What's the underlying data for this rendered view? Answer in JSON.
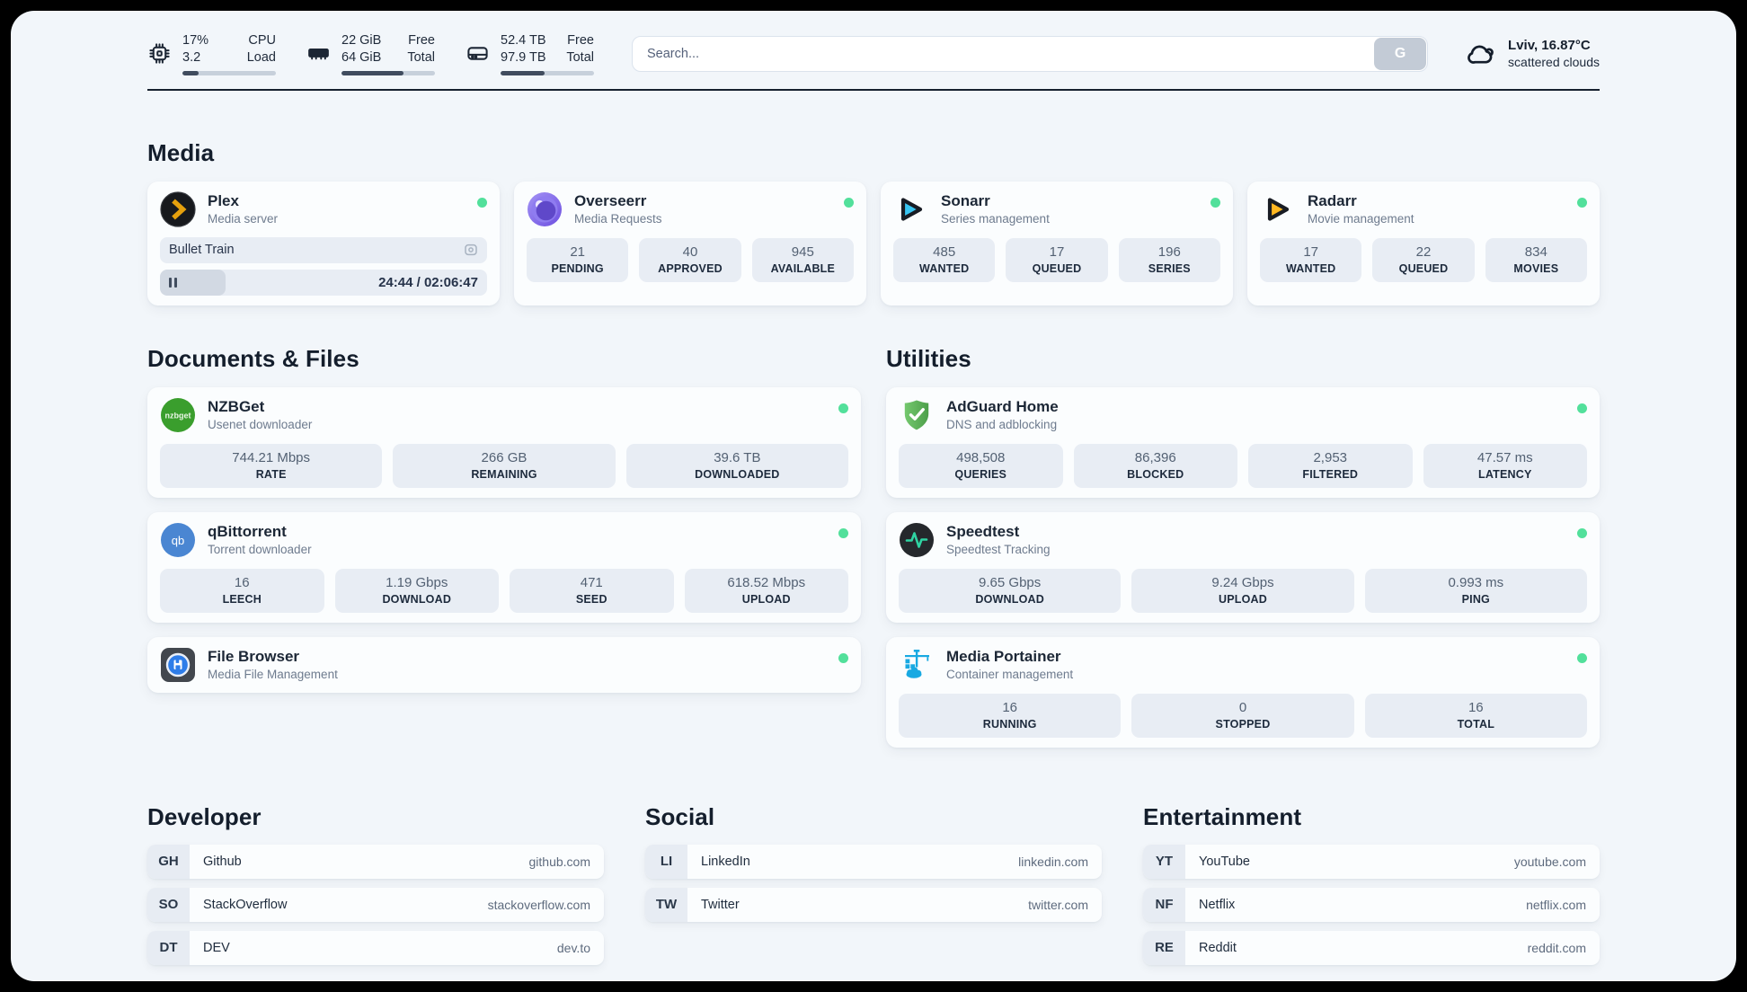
{
  "colors": {
    "status_online": "#52e09b",
    "plex": "#e5a00d",
    "sonarr": "#38c5f2",
    "radarr": "#ffb822",
    "nzbget": "#3a9e2d",
    "qbittorrent": "#4a86d2",
    "adguard": "#63b95e",
    "speedtest_pulse": "#2fd3a2",
    "portainer": "#18a9e2",
    "filebrowser_blue": "#2e7de9"
  },
  "header": {
    "stats": [
      {
        "icon": "cpu-icon",
        "col1": [
          "17%",
          "3.2"
        ],
        "col2": [
          "CPU",
          "Load"
        ],
        "progress": 17
      },
      {
        "icon": "ram-icon",
        "col1": [
          "22 GiB",
          "64 GiB"
        ],
        "col2": [
          "Free",
          "Total"
        ],
        "progress": 66
      },
      {
        "icon": "disk-icon",
        "col1": [
          "52.4 TB",
          "97.9 TB"
        ],
        "col2": [
          "Free",
          "Total"
        ],
        "progress": 47
      }
    ],
    "search": {
      "placeholder": "Search...",
      "button": "G"
    },
    "weather": {
      "icon": "cloud-icon",
      "location": "Lviv, 16.87°C",
      "condition": "scattered clouds"
    }
  },
  "media": {
    "heading": "Media",
    "plex": {
      "name": "Plex",
      "desc": "Media server",
      "status": "online",
      "now_playing": "Bullet Train",
      "time": "24:44 / 02:06:47",
      "progress": 20
    },
    "cards": [
      {
        "name": "Overseerr",
        "desc": "Media Requests",
        "status": "online",
        "stats": [
          {
            "v": "21",
            "l": "PENDING"
          },
          {
            "v": "40",
            "l": "APPROVED"
          },
          {
            "v": "945",
            "l": "AVAILABLE"
          }
        ]
      },
      {
        "name": "Sonarr",
        "desc": "Series management",
        "status": "online",
        "stats": [
          {
            "v": "485",
            "l": "WANTED"
          },
          {
            "v": "17",
            "l": "QUEUED"
          },
          {
            "v": "196",
            "l": "SERIES"
          }
        ]
      },
      {
        "name": "Radarr",
        "desc": "Movie management",
        "status": "online",
        "stats": [
          {
            "v": "17",
            "l": "WANTED"
          },
          {
            "v": "22",
            "l": "QUEUED"
          },
          {
            "v": "834",
            "l": "MOVIES"
          }
        ]
      }
    ]
  },
  "documents": {
    "heading": "Documents & Files",
    "cards": [
      {
        "name": "NZBGet",
        "desc": "Usenet downloader",
        "status": "online",
        "stats": [
          {
            "v": "744.21 Mbps",
            "l": "RATE"
          },
          {
            "v": "266 GB",
            "l": "REMAINING"
          },
          {
            "v": "39.6 TB",
            "l": "DOWNLOADED"
          }
        ]
      },
      {
        "name": "qBittorrent",
        "desc": "Torrent downloader",
        "status": "online",
        "stats": [
          {
            "v": "16",
            "l": "LEECH"
          },
          {
            "v": "1.19 Gbps",
            "l": "DOWNLOAD"
          },
          {
            "v": "471",
            "l": "SEED"
          },
          {
            "v": "618.52 Mbps",
            "l": "UPLOAD"
          }
        ]
      },
      {
        "name": "File Browser",
        "desc": "Media File Management",
        "status": "online",
        "stats": []
      }
    ]
  },
  "utilities": {
    "heading": "Utilities",
    "cards": [
      {
        "name": "AdGuard Home",
        "desc": "DNS and adblocking",
        "status": "online",
        "stats": [
          {
            "v": "498,508",
            "l": "QUERIES"
          },
          {
            "v": "86,396",
            "l": "BLOCKED"
          },
          {
            "v": "2,953",
            "l": "FILTERED"
          },
          {
            "v": "47.57 ms",
            "l": "LATENCY"
          }
        ]
      },
      {
        "name": "Speedtest",
        "desc": "Speedtest Tracking",
        "status": "online",
        "stats": [
          {
            "v": "9.65 Gbps",
            "l": "DOWNLOAD"
          },
          {
            "v": "9.24 Gbps",
            "l": "UPLOAD"
          },
          {
            "v": "0.993 ms",
            "l": "PING"
          }
        ]
      },
      {
        "name": "Media Portainer",
        "desc": "Container management",
        "status": "online",
        "stats": [
          {
            "v": "16",
            "l": "RUNNING"
          },
          {
            "v": "0",
            "l": "STOPPED"
          },
          {
            "v": "16",
            "l": "TOTAL"
          }
        ]
      }
    ]
  },
  "bookmarks": [
    {
      "heading": "Developer",
      "links": [
        {
          "abbr": "GH",
          "name": "Github",
          "url": "github.com"
        },
        {
          "abbr": "SO",
          "name": "StackOverflow",
          "url": "stackoverflow.com"
        },
        {
          "abbr": "DT",
          "name": "DEV",
          "url": "dev.to"
        }
      ]
    },
    {
      "heading": "Social",
      "links": [
        {
          "abbr": "LI",
          "name": "LinkedIn",
          "url": "linkedin.com"
        },
        {
          "abbr": "TW",
          "name": "Twitter",
          "url": "twitter.com"
        }
      ]
    },
    {
      "heading": "Entertainment",
      "links": [
        {
          "abbr": "YT",
          "name": "YouTube",
          "url": "youtube.com"
        },
        {
          "abbr": "NF",
          "name": "Netflix",
          "url": "netflix.com"
        },
        {
          "abbr": "RE",
          "name": "Reddit",
          "url": "reddit.com"
        }
      ]
    }
  ]
}
